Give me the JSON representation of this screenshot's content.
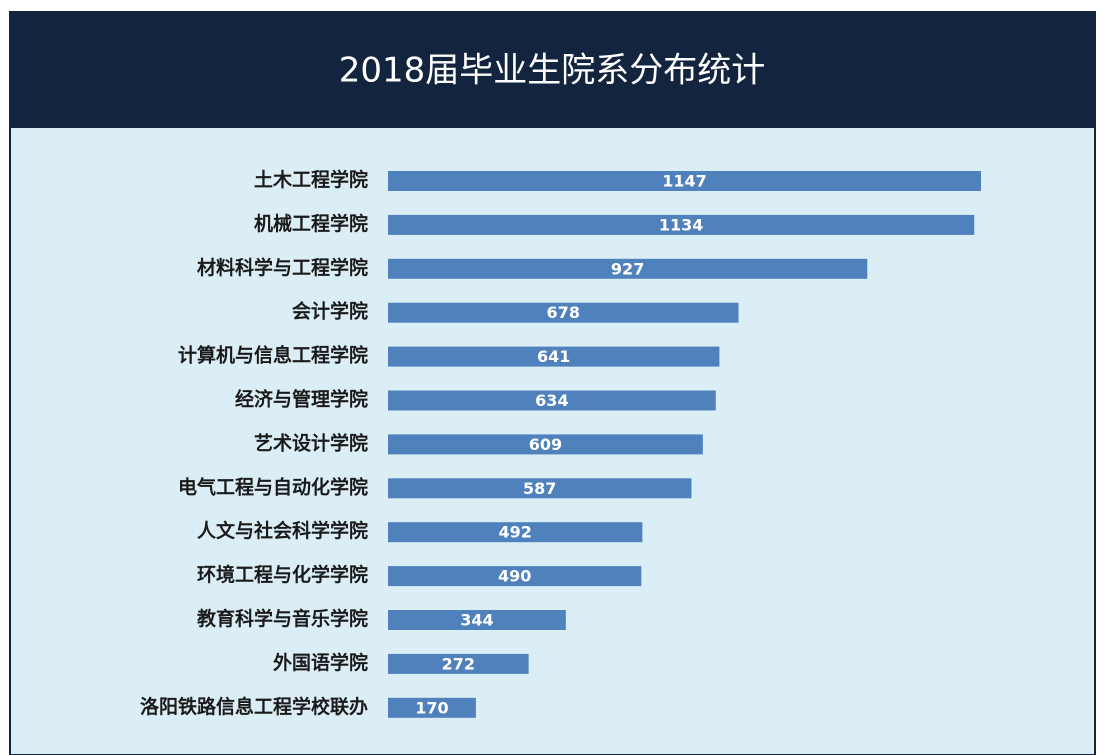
{
  "chart_data": {
    "type": "bar",
    "orientation": "horizontal",
    "title": "2018届毕业生院系分布统计",
    "categories": [
      "土木工程学院",
      "机械工程学院",
      "材料科学与工程学院",
      "会计学院",
      "计算机与信息工程学院",
      "经济与管理学院",
      "艺术设计学院",
      "电气工程与自动化学院",
      "人文与社会科学学院",
      "环境工程与化学学院",
      "教育科学与音乐学院",
      "外国语学院",
      "洛阳铁路信息工程学校联办"
    ],
    "values": [
      1147,
      1134,
      927,
      678,
      641,
      634,
      609,
      587,
      492,
      490,
      344,
      272,
      170
    ],
    "color": "#4f81bd"
  }
}
